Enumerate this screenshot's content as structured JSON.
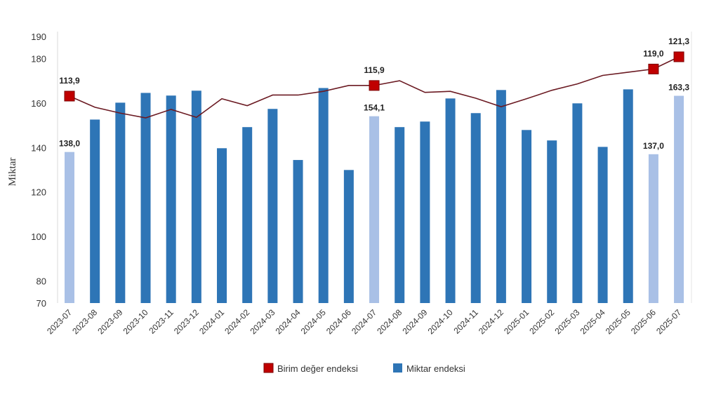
{
  "chart_data": {
    "type": "bar+line",
    "ylabel": "Miktar",
    "ylim": [
      70,
      190
    ],
    "yticks": [
      70,
      80,
      100,
      120,
      140,
      160,
      180,
      190
    ],
    "categories": [
      "2023-07",
      "2023-08",
      "2023-09",
      "2023-10",
      "2023-11",
      "2023-12",
      "2024-01",
      "2024-02",
      "2024-03",
      "2024-04",
      "2024-05",
      "2024-06",
      "2024-07",
      "2024-08",
      "2024-09",
      "2024-10",
      "2024-11",
      "2024-12",
      "2025-01",
      "2025-02",
      "2025-03",
      "2025-04",
      "2025-05",
      "2025-06",
      "2025-07"
    ],
    "series": [
      {
        "name": "Miktar endeksi",
        "type": "bar",
        "color": "#2e75b6",
        "highlight_color": "#a9c0e6",
        "values": [
          138.0,
          152.6,
          160.2,
          164.6,
          163.4,
          165.6,
          139.7,
          149.2,
          157.4,
          134.4,
          166.8,
          129.9,
          154.1,
          149.2,
          151.7,
          162.1,
          155.5,
          165.9,
          147.9,
          143.2,
          159.9,
          140.3,
          166.2,
          137.0,
          163.3
        ],
        "highlighted": [
          "2023-07",
          "2024-07",
          "2025-06",
          "2025-07"
        ],
        "labels": {
          "2023-07": "138,0",
          "2024-07": "154,1",
          "2025-06": "137,0",
          "2025-07": "163,3"
        }
      },
      {
        "name": "Birim değer endeksi",
        "type": "line",
        "color": "#c00000",
        "line_color": "#6b1a22",
        "values": [
          113.9,
          111.8,
          110.7,
          109.8,
          111.4,
          109.9,
          113.4,
          112.1,
          114.1,
          114.1,
          114.8,
          115.9,
          115.9,
          116.8,
          114.6,
          114.8,
          113.5,
          111.9,
          113.4,
          115.0,
          116.2,
          117.8,
          118.4,
          119.0,
          121.3
        ],
        "labels": {
          "2023-07": "113,9",
          "2024-07": "115,9",
          "2025-06": "119,0",
          "2025-07": "121,3"
        }
      }
    ],
    "legend": [
      "Birim değer endeksi",
      "Miktar endeksi"
    ],
    "legend_position": "bottom"
  }
}
